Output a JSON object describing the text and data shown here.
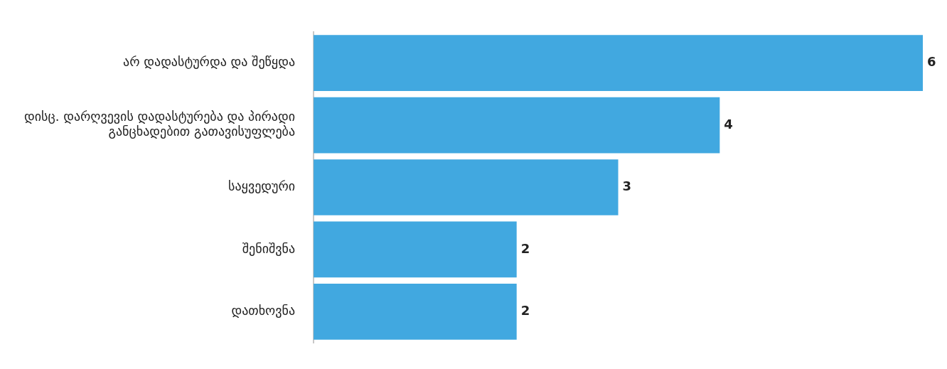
{
  "chart_data": {
    "type": "bar",
    "orientation": "horizontal",
    "categories": [
      "არ დადასტურდა და შეწყდა",
      "დისც. დარღვევის დადასტურება და პირადი განცხადებით გათავისუფლება",
      "საყვედური",
      "შენიშვნა",
      "დათხოვნა"
    ],
    "values": [
      6,
      4,
      3,
      2,
      2
    ],
    "color": "#41a8e0",
    "data_labels": true,
    "grid": false,
    "legend": false
  }
}
